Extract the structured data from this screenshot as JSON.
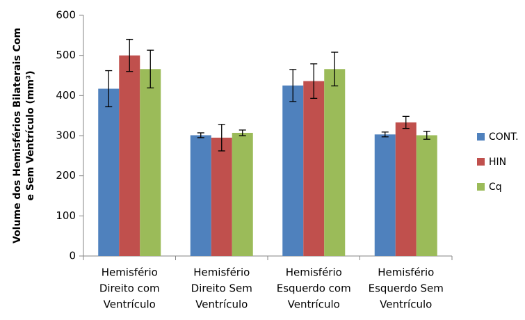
{
  "chart_data": {
    "type": "bar",
    "ylabel_lines": [
      "Volume dos Hemisférios Bilaterais Com",
      "e Sem Ventrículo (mm³)"
    ],
    "xlabel": "",
    "ylim": [
      0,
      600
    ],
    "yticks": [
      0,
      100,
      200,
      300,
      400,
      500,
      600
    ],
    "grid": false,
    "legend_position": "right",
    "categories": [
      [
        "Hemisfério",
        "Direito com",
        "Ventrículo"
      ],
      [
        "Hemisfério",
        "Direito Sem",
        "Ventrículo"
      ],
      [
        "Hemisfério",
        "Esquerdo com",
        "Ventrículo"
      ],
      [
        "Hemisfério",
        "Esquerdo Sem",
        "Ventrículo"
      ]
    ],
    "series": [
      {
        "name": "CONT.",
        "color": "#4F81BD",
        "values": [
          417,
          301,
          425,
          303
        ],
        "errors": [
          45,
          6,
          40,
          6
        ]
      },
      {
        "name": "HIN",
        "color": "#C0504D",
        "values": [
          500,
          295,
          436,
          333
        ],
        "errors": [
          40,
          33,
          43,
          15
        ]
      },
      {
        "name": "Cq",
        "color": "#9BBB59",
        "values": [
          466,
          307,
          466,
          301
        ],
        "errors": [
          47,
          7,
          42,
          10
        ]
      }
    ]
  }
}
